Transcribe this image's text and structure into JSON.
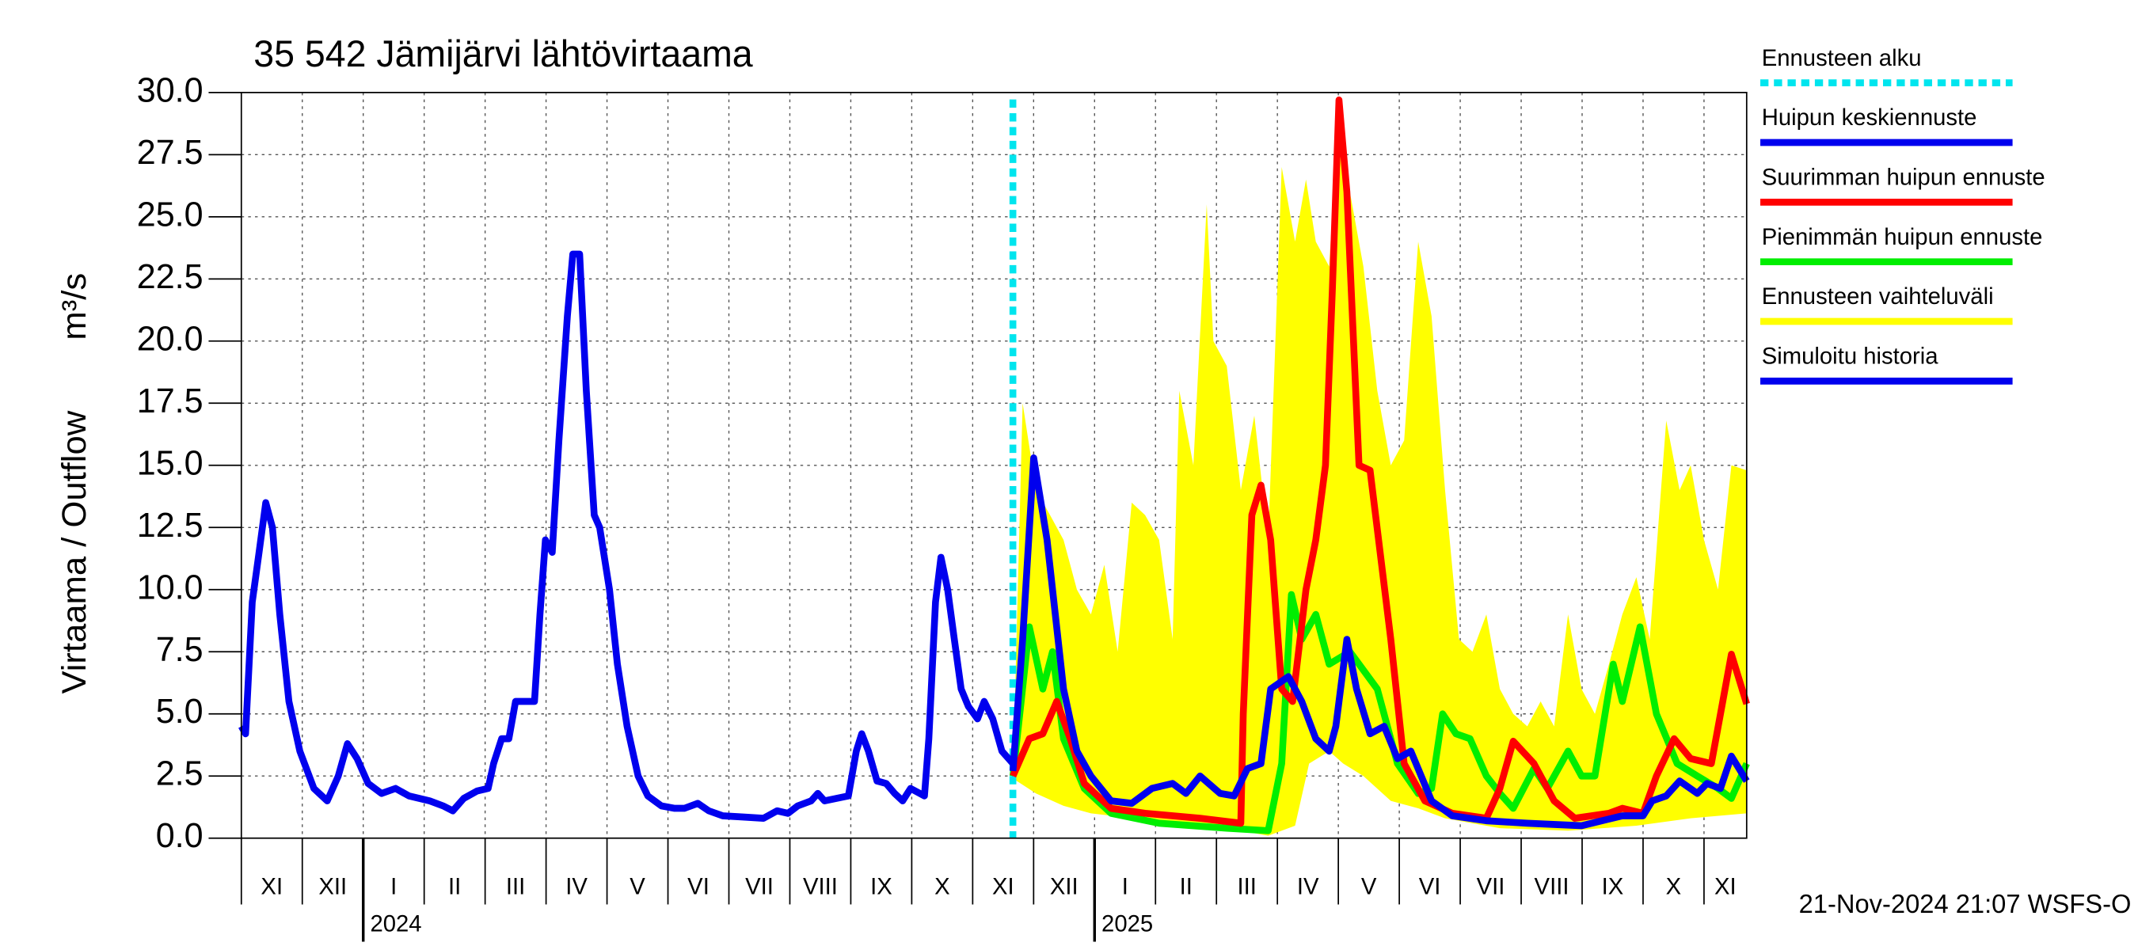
{
  "chart_data": {
    "type": "line",
    "title": "35 542 Jämijärvi lähtövirtaama",
    "y_label": "Virtaama / Outflow",
    "y_unit": "m³/s",
    "footer": "21-Nov-2024 21:07 WSFS-O",
    "grid": true,
    "legend": "right",
    "xlim": [
      0,
      24.7
    ],
    "ylim": [
      0,
      30
    ],
    "yticks": [
      {
        "value": 0,
        "label": "0.0"
      },
      2.5,
      {
        "value": 5,
        "label": "5.0"
      },
      7.5,
      {
        "value": 10,
        "label": "10.0"
      },
      12.5,
      {
        "value": 15,
        "label": "15.0"
      },
      17.5,
      {
        "value": 20,
        "label": "20.0"
      },
      22.5,
      {
        "value": 25,
        "label": "25.0"
      },
      27.5,
      {
        "value": 30,
        "label": "30.0"
      }
    ],
    "xticks": [
      {
        "value": 0,
        "label": "XI"
      },
      {
        "value": 1,
        "label": "XII"
      },
      {
        "value": 2,
        "label": "I"
      },
      {
        "value": 3,
        "label": "II"
      },
      {
        "value": 4,
        "label": "III"
      },
      {
        "value": 5,
        "label": "IV"
      },
      {
        "value": 6,
        "label": "V"
      },
      {
        "value": 7,
        "label": "VI"
      },
      {
        "value": 8,
        "label": "VII"
      },
      {
        "value": 9,
        "label": "VIII"
      },
      {
        "value": 10,
        "label": "IX"
      },
      {
        "value": 11,
        "label": "X"
      },
      {
        "value": 12,
        "label": "XI"
      },
      {
        "value": 13,
        "label": "XII"
      },
      {
        "value": 14,
        "label": "I"
      },
      {
        "value": 15,
        "label": "II"
      },
      {
        "value": 16,
        "label": "III"
      },
      {
        "value": 17,
        "label": "IV"
      },
      {
        "value": 18,
        "label": "V"
      },
      {
        "value": 19,
        "label": "VI"
      },
      {
        "value": 20,
        "label": "VII"
      },
      {
        "value": 21,
        "label": "VIII"
      },
      {
        "value": 22,
        "label": "IX"
      },
      {
        "value": 23,
        "label": "X"
      },
      {
        "value": 24,
        "label": "XI"
      }
    ],
    "years": [
      {
        "value": 2,
        "label": "2024"
      },
      {
        "value": 14,
        "label": "2025"
      }
    ],
    "forecast_start": {
      "name": "Ennusteen alku",
      "color": "#00e5ee",
      "value": 12.66
    },
    "band": {
      "name": "Ennusteen vaihteluväli",
      "color": "#ffff00",
      "x_upper": [
        12.66,
        12.82,
        13.04,
        13.27,
        13.49,
        13.71,
        13.94,
        14.16,
        14.38,
        14.61,
        14.83,
        15.06,
        15.28,
        15.39,
        15.62,
        15.84,
        15.95,
        16.17,
        16.4,
        16.62,
        16.85,
        17.07,
        17.29,
        17.47,
        17.63,
        17.85,
        18.01,
        18.19,
        18.41,
        18.64,
        18.86,
        19.08,
        19.31,
        19.53,
        19.75,
        19.98,
        20.2,
        20.43,
        20.65,
        20.87,
        21.1,
        21.32,
        21.54,
        21.77,
        21.99,
        22.21,
        22.44,
        22.66,
        22.89,
        23.11,
        23.38,
        23.6,
        23.78,
        24.0,
        24.23,
        24.45,
        24.7
      ],
      "upper": [
        2.5,
        17.5,
        14,
        13,
        12,
        10,
        9,
        11,
        7.5,
        13.5,
        13,
        12,
        8,
        18,
        15,
        25.5,
        20,
        19,
        14,
        17,
        12,
        27,
        24,
        26.5,
        24,
        23,
        29.7,
        26,
        23,
        18,
        15,
        16,
        24,
        21,
        14,
        8,
        7.5,
        9,
        6,
        5,
        4.5,
        5.5,
        4.5,
        9,
        6,
        5,
        7,
        9,
        10.5,
        8,
        16.8,
        14,
        15,
        12,
        10,
        15,
        14.8
      ],
      "x_lower": [
        12.66,
        13.04,
        13.49,
        13.94,
        14.61,
        15.28,
        16.17,
        16.85,
        17.29,
        17.52,
        17.85,
        18.08,
        18.41,
        18.86,
        19.31,
        19.75,
        20.65,
        21.77,
        22.89,
        23.78,
        24.7
      ],
      "lower": [
        2.4,
        1.8,
        1.3,
        1.0,
        0.8,
        0.6,
        0.4,
        0.1,
        0.5,
        3,
        3.5,
        3.0,
        2.5,
        1.5,
        1.2,
        0.8,
        0.4,
        0.3,
        0.5,
        0.8,
        1.0
      ]
    },
    "series": [
      {
        "name": "Huipun keskiennuste",
        "color": "#0000ee",
        "x": [
          12.66,
          12.82,
          13.0,
          13.22,
          13.49,
          13.71,
          13.94,
          14.27,
          14.61,
          14.94,
          15.28,
          15.5,
          15.73,
          16.06,
          16.29,
          16.51,
          16.73,
          16.89,
          17.18,
          17.4,
          17.63,
          17.85,
          17.96,
          18.14,
          18.3,
          18.52,
          18.75,
          18.97,
          19.19,
          19.53,
          19.87,
          20.43,
          21.1,
          21.99,
          22.66,
          23.0,
          23.15,
          23.38,
          23.6,
          23.89,
          24.05,
          24.27,
          24.45,
          24.7
        ],
        "values": [
          2.7,
          8,
          15.3,
          12,
          6,
          3.5,
          2.5,
          1.5,
          1.4,
          2,
          2.2,
          1.8,
          2.5,
          1.8,
          1.7,
          2.8,
          3,
          6,
          6.5,
          5.5,
          4,
          3.5,
          4.5,
          8,
          6,
          4.2,
          4.5,
          3.2,
          3.5,
          1.5,
          0.9,
          0.7,
          0.6,
          0.5,
          0.9,
          0.9,
          1.5,
          1.7,
          2.3,
          1.8,
          2.2,
          2.0,
          3.3,
          2.3
        ]
      },
      {
        "name": "Suurimman huipun ennuste",
        "color": "#ff0000",
        "x": [
          12.66,
          12.93,
          13.15,
          13.38,
          13.6,
          13.83,
          14.27,
          14.83,
          15.73,
          16.4,
          16.44,
          16.58,
          16.73,
          16.89,
          17.07,
          17.25,
          17.47,
          17.63,
          17.79,
          17.9,
          18.01,
          18.14,
          18.34,
          18.52,
          18.86,
          19.08,
          19.42,
          19.87,
          20.43,
          20.65,
          20.87,
          21.21,
          21.54,
          21.88,
          22.44,
          22.66,
          23.0,
          23.22,
          23.51,
          23.78,
          24.12,
          24.27,
          24.45,
          24.7
        ],
        "values": [
          2.5,
          4,
          4.2,
          5.5,
          4,
          2.2,
          1.2,
          1.0,
          0.8,
          0.6,
          5,
          13,
          14.2,
          12,
          6,
          5.5,
          10,
          12,
          15,
          22,
          29.7,
          26,
          15,
          14.8,
          8,
          3,
          1.5,
          1.0,
          0.8,
          2,
          3.9,
          3,
          1.5,
          0.8,
          1.0,
          1.2,
          1.0,
          2.5,
          4,
          3.2,
          3,
          5,
          7.4,
          5.4
        ]
      },
      {
        "name": "Pienimmän huipun ennuste",
        "color": "#00ee00",
        "x": [
          12.66,
          12.93,
          13.15,
          13.31,
          13.49,
          13.83,
          14.27,
          15.06,
          16.17,
          16.85,
          17.07,
          17.23,
          17.4,
          17.63,
          17.85,
          18.19,
          18.64,
          18.97,
          19.31,
          19.53,
          19.71,
          19.93,
          20.16,
          20.43,
          20.65,
          20.87,
          21.21,
          21.43,
          21.77,
          21.99,
          22.21,
          22.51,
          22.66,
          22.95,
          23.22,
          23.56,
          23.89,
          24.23,
          24.45,
          24.7
        ],
        "values": [
          2.5,
          8.5,
          6,
          7.5,
          4,
          2,
          1.0,
          0.6,
          0.4,
          0.3,
          3,
          9.8,
          8,
          9,
          7,
          7.5,
          6,
          3,
          1.8,
          2,
          5,
          4.2,
          4,
          2.5,
          1.8,
          1.2,
          2.8,
          2,
          3.5,
          2.5,
          2.5,
          7,
          5.5,
          8.5,
          5,
          3,
          2.5,
          2,
          1.6,
          3
        ]
      },
      {
        "name": "Simuloitu historia",
        "color": "#0000ee",
        "x": [
          0,
          0.07,
          0.18,
          0.29,
          0.4,
          0.51,
          0.63,
          0.78,
          0.96,
          1.19,
          1.41,
          1.59,
          1.74,
          1.9,
          2.08,
          2.3,
          2.53,
          2.75,
          3.09,
          3.31,
          3.47,
          3.65,
          3.87,
          4.05,
          4.14,
          4.27,
          4.39,
          4.5,
          4.65,
          4.81,
          4.9,
          4.99,
          5.1,
          5.21,
          5.35,
          5.44,
          5.55,
          5.66,
          5.79,
          5.88,
          6.04,
          6.17,
          6.33,
          6.51,
          6.67,
          6.89,
          7.11,
          7.27,
          7.49,
          7.67,
          7.9,
          8.23,
          8.57,
          8.79,
          8.97,
          9.13,
          9.35,
          9.46,
          9.57,
          9.96,
          10.09,
          10.18,
          10.29,
          10.43,
          10.58,
          10.72,
          10.85,
          10.98,
          11.21,
          11.28,
          11.39,
          11.48,
          11.59,
          11.7,
          11.81,
          11.93,
          12.08,
          12.19,
          12.33,
          12.48,
          12.66
        ],
        "values": [
          4.5,
          4.2,
          9.5,
          11.5,
          13.5,
          12.5,
          9,
          5.5,
          3.5,
          2,
          1.5,
          2.5,
          3.8,
          3.2,
          2.2,
          1.8,
          2,
          1.7,
          1.5,
          1.3,
          1.1,
          1.6,
          1.9,
          2,
          3,
          4,
          4,
          5.5,
          5.5,
          5.5,
          9,
          12,
          11.5,
          16,
          21,
          23.5,
          23.5,
          18,
          13,
          12.5,
          10,
          7,
          4.5,
          2.5,
          1.7,
          1.3,
          1.2,
          1.2,
          1.4,
          1.1,
          0.9,
          0.85,
          0.8,
          1.1,
          1.0,
          1.3,
          1.5,
          1.8,
          1.5,
          1.7,
          3.5,
          4.2,
          3.5,
          2.3,
          2.2,
          1.8,
          1.5,
          2,
          1.7,
          4,
          9.5,
          11.3,
          10,
          8,
          6,
          5.3,
          4.8,
          5.5,
          4.8,
          3.5,
          3.0
        ]
      }
    ]
  }
}
